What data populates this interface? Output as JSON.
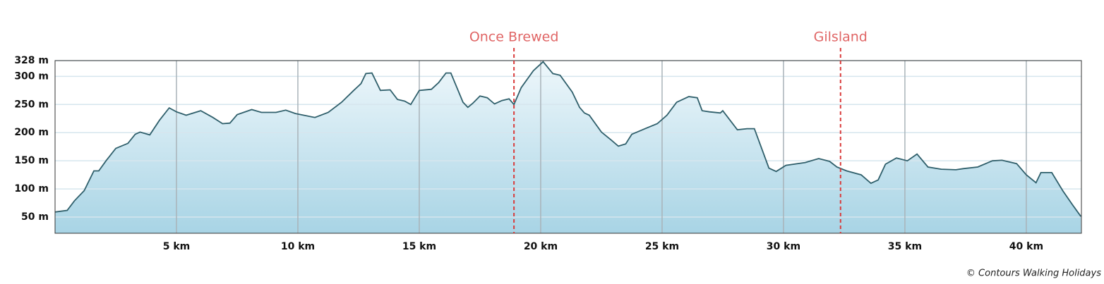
{
  "chart_data": {
    "type": "area",
    "x": [
      0,
      0.5,
      0.8,
      1.2,
      1.6,
      1.8,
      2.1,
      2.5,
      3.0,
      3.3,
      3.5,
      3.9,
      4.3,
      4.7,
      5.0,
      5.4,
      6.0,
      6.5,
      6.9,
      7.2,
      7.5,
      8.1,
      8.5,
      9.1,
      9.5,
      9.9,
      10.7,
      11.25,
      11.8,
      12.3,
      12.6,
      12.8,
      13.05,
      13.4,
      13.8,
      14.1,
      14.4,
      14.65,
      15.0,
      15.5,
      15.8,
      16.1,
      16.3,
      16.8,
      17.0,
      17.2,
      17.5,
      17.8,
      18.1,
      18.4,
      18.7,
      18.9,
      19.2,
      19.7,
      20.1,
      20.5,
      20.8,
      21.3,
      21.6,
      21.8,
      22.0,
      22.5,
      22.9,
      23.2,
      23.5,
      23.75,
      24.3,
      24.8,
      25.2,
      25.6,
      26.1,
      26.45,
      26.65,
      26.95,
      27.4,
      27.5,
      27.8,
      28.1,
      28.5,
      28.8,
      29.1,
      29.4,
      29.7,
      30.1,
      30.9,
      31.45,
      31.9,
      32.2,
      32.6,
      33.2,
      33.6,
      33.9,
      34.2,
      34.65,
      35.1,
      35.5,
      35.95,
      36.5,
      37.1,
      37.4,
      38.0,
      38.6,
      39.0,
      39.6,
      40.0,
      40.4,
      40.6,
      41.05,
      41.5,
      41.9,
      42.25
    ],
    "y": [
      59,
      62,
      79,
      97,
      132,
      132,
      150,
      172,
      181,
      197,
      201,
      196,
      222,
      244,
      237,
      231,
      239,
      227,
      216,
      217,
      232,
      241,
      236,
      236,
      240,
      234,
      227,
      236,
      254,
      275,
      287,
      305,
      306,
      275,
      276,
      259,
      256,
      250,
      275,
      277,
      289,
      306,
      306,
      254,
      245,
      252,
      265,
      262,
      251,
      257,
      260,
      250,
      280,
      310,
      326,
      305,
      302,
      272,
      245,
      235,
      231,
      201,
      187,
      176,
      180,
      197,
      207,
      216,
      231,
      254,
      264,
      262,
      239,
      237,
      235,
      239,
      222,
      205,
      207,
      207,
      172,
      137,
      131,
      142,
      147,
      154,
      149,
      139,
      132,
      125,
      110,
      116,
      144,
      155,
      150,
      162,
      139,
      135,
      134,
      136,
      139,
      150,
      151,
      145,
      125,
      111,
      129,
      129,
      97,
      72,
      51
    ],
    "line_color": "#2f5f6b",
    "fill_top": "#eef7fb",
    "fill_bottom": "#a8d4e5",
    "xlim": [
      0,
      42.27
    ],
    "ylim": [
      21.25,
      328
    ],
    "xticks": [
      {
        "value": 5,
        "label": "5 km"
      },
      {
        "value": 10,
        "label": "10 km"
      },
      {
        "value": 15,
        "label": "15 km"
      },
      {
        "value": 20,
        "label": "20 km"
      },
      {
        "value": 25,
        "label": "25 km"
      },
      {
        "value": 30,
        "label": "30 km"
      },
      {
        "value": 35,
        "label": "35 km"
      },
      {
        "value": 40,
        "label": "40 km"
      }
    ],
    "yticks": [
      {
        "value": 50,
        "label": "50 m"
      },
      {
        "value": 100,
        "label": "100 m"
      },
      {
        "value": 150,
        "label": "150 m"
      },
      {
        "value": 200,
        "label": "200 m"
      },
      {
        "value": 250,
        "label": "250 m"
      },
      {
        "value": 300,
        "label": "300 m"
      },
      {
        "value": 328,
        "label": "328 m"
      }
    ],
    "grid": true,
    "annotations": [
      {
        "text": "Once Brewed",
        "x": 18.9
      },
      {
        "text": "Gilsland",
        "x": 32.35
      }
    ],
    "annotation_color": "#d93b3b",
    "credit": "© Contours Walking Holidays"
  }
}
